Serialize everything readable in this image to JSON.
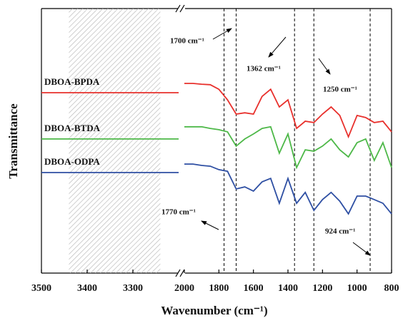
{
  "chart_data": {
    "type": "line",
    "xlabel": "Wavenumber (cm⁻¹)",
    "ylabel": "Transmittance",
    "xlim": [
      3500,
      800
    ],
    "x_break": [
      3200,
      2000
    ],
    "ylim": [
      0,
      100
    ],
    "xticks": [
      3500,
      3400,
      3300,
      2000,
      1800,
      1600,
      1400,
      1200,
      1000,
      800
    ],
    "shaded_region": [
      3440,
      3240
    ],
    "reference_lines": [
      1770,
      1700,
      1362,
      1250,
      924
    ],
    "annotations": [
      {
        "text": "1700 cm⁻¹"
      },
      {
        "text": "1362 cm⁻¹"
      },
      {
        "text": "1250 cm⁻¹"
      },
      {
        "text": "1770 cm⁻¹"
      },
      {
        "text": "924 cm⁻¹"
      }
    ],
    "x": [
      3500,
      3200,
      2000,
      1950,
      1900,
      1850,
      1800,
      1750,
      1700,
      1650,
      1600,
      1550,
      1500,
      1450,
      1400,
      1350,
      1300,
      1250,
      1200,
      1150,
      1100,
      1050,
      1000,
      950,
      900,
      850,
      800
    ],
    "series": [
      {
        "name": "DBOA-BPDA",
        "color": "#e8302c",
        "values": [
          68.2,
          68.2,
          71.7,
          71.7,
          71.4,
          71.2,
          69.5,
          65.5,
          60.1,
          60.6,
          60.1,
          66.8,
          69.5,
          62.8,
          65.5,
          54.7,
          57.4,
          56.9,
          60.1,
          62.8,
          59.6,
          51.5,
          59.6,
          58.8,
          56.9,
          57.4,
          53.4
        ]
      },
      {
        "name": "DBOA-BTDA",
        "color": "#4db848",
        "values": [
          50.7,
          50.7,
          55.3,
          55.3,
          55.3,
          54.7,
          54.2,
          53.4,
          48.0,
          50.7,
          52.6,
          54.7,
          55.3,
          45.3,
          52.6,
          39.9,
          46.6,
          46.1,
          48.0,
          50.7,
          46.6,
          43.9,
          49.3,
          50.7,
          42.6,
          49.3,
          39.9
        ]
      },
      {
        "name": "DBOA-ODPA",
        "color": "#2e4fa3",
        "values": [
          38.0,
          38.0,
          41.2,
          41.2,
          40.7,
          40.4,
          39.1,
          38.5,
          31.8,
          32.6,
          31.0,
          34.5,
          35.8,
          26.4,
          35.8,
          26.4,
          30.5,
          23.7,
          27.8,
          30.5,
          27.2,
          22.4,
          29.1,
          29.1,
          27.8,
          26.4,
          22.4
        ]
      }
    ]
  }
}
